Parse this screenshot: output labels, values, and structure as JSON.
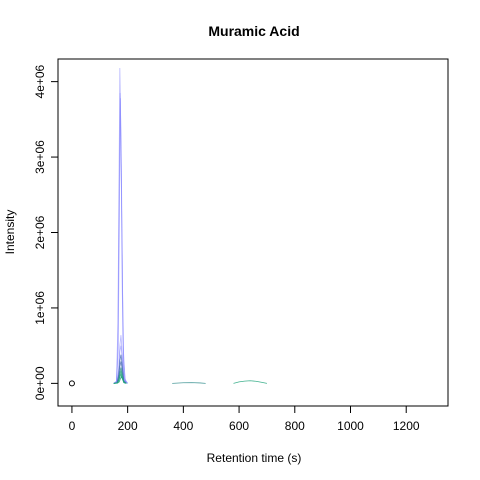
{
  "chart_data": {
    "type": "line",
    "title": "Muramic Acid",
    "xlabel": "Retention time (s)",
    "ylabel": "Intensity",
    "xlim": [
      -50,
      1350
    ],
    "ylim": [
      -300000,
      4300000
    ],
    "x_ticks": [
      0,
      200,
      400,
      600,
      800,
      1000,
      1200
    ],
    "x_tick_labels": [
      "0",
      "200",
      "400",
      "600",
      "800",
      "1000",
      "1200"
    ],
    "y_ticks": [
      0,
      1000000,
      2000000,
      3000000,
      4000000
    ],
    "y_tick_labels": [
      "0e+00",
      "1e+06",
      "2e+06",
      "3e+06",
      "4e+06"
    ],
    "grid": false,
    "legend": "none",
    "marker_point": {
      "x": 0,
      "y": 0
    },
    "colors": {
      "blue_series": "#8080ff",
      "blue_dark": "#4a6fb5",
      "green_series": "#1fa37a",
      "teal_series": "#2e8b8b"
    },
    "series": [
      {
        "color_key": "blue_series",
        "x": [
          150,
          160,
          165,
          170,
          172,
          175,
          178,
          180,
          183,
          186,
          190,
          200
        ],
        "y": [
          0,
          30000,
          800000,
          3200000,
          4180000,
          3500000,
          2500000,
          1400000,
          600000,
          150000,
          40000,
          0
        ]
      },
      {
        "color_key": "blue_series",
        "x": [
          150,
          160,
          165,
          170,
          173,
          176,
          180,
          184,
          190,
          200
        ],
        "y": [
          0,
          20000,
          500000,
          2600000,
          3850000,
          3100000,
          1800000,
          500000,
          60000,
          0
        ]
      },
      {
        "color_key": "blue_series",
        "x": [
          150,
          160,
          166,
          170,
          174,
          178,
          182,
          186,
          192,
          200
        ],
        "y": [
          0,
          15000,
          400000,
          2000000,
          3780000,
          2700000,
          1200000,
          300000,
          30000,
          0
        ]
      },
      {
        "color_key": "blue_series",
        "x": [
          150,
          162,
          168,
          172,
          176,
          180,
          186,
          195
        ],
        "y": [
          0,
          20000,
          200000,
          500000,
          640000,
          420000,
          80000,
          0
        ]
      },
      {
        "color_key": "blue_series",
        "x": [
          150,
          162,
          168,
          172,
          176,
          180,
          186,
          195
        ],
        "y": [
          0,
          15000,
          150000,
          420000,
          500000,
          360000,
          60000,
          0
        ]
      },
      {
        "color_key": "blue_dark",
        "x": [
          150,
          162,
          168,
          172,
          176,
          180,
          186,
          195
        ],
        "y": [
          0,
          10000,
          120000,
          300000,
          380000,
          260000,
          40000,
          0
        ]
      },
      {
        "color_key": "blue_dark",
        "x": [
          150,
          162,
          168,
          172,
          176,
          180,
          186,
          195
        ],
        "y": [
          0,
          8000,
          90000,
          220000,
          290000,
          200000,
          30000,
          0
        ]
      },
      {
        "color_key": "teal_series",
        "x": [
          150,
          163,
          168,
          172,
          176,
          180,
          186,
          195
        ],
        "y": [
          0,
          6000,
          60000,
          150000,
          210000,
          140000,
          20000,
          0
        ]
      },
      {
        "color_key": "green_series",
        "x": [
          150,
          163,
          168,
          172,
          176,
          180,
          186,
          195
        ],
        "y": [
          0,
          5000,
          40000,
          110000,
          160000,
          100000,
          15000,
          0
        ]
      },
      {
        "color_key": "green_series",
        "x": [
          150,
          163,
          168,
          172,
          176,
          180,
          186,
          195
        ],
        "y": [
          0,
          4000,
          30000,
          80000,
          120000,
          70000,
          10000,
          0
        ]
      },
      {
        "color_key": "green_series",
        "x": [
          150,
          164,
          170,
          174,
          178,
          182,
          188,
          196
        ],
        "y": [
          0,
          3000,
          20000,
          60000,
          90000,
          55000,
          8000,
          0
        ]
      },
      {
        "color_key": "green_series",
        "x": [
          580,
          600,
          620,
          640,
          660,
          680,
          700
        ],
        "y": [
          0,
          20000,
          30000,
          35000,
          28000,
          15000,
          0
        ]
      },
      {
        "color_key": "teal_series",
        "x": [
          360,
          400,
          430,
          460,
          480
        ],
        "y": [
          0,
          8000,
          10000,
          6000,
          0
        ]
      }
    ]
  }
}
